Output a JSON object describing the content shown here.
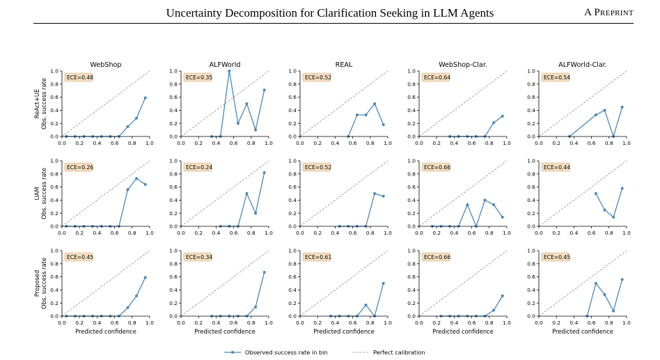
{
  "header": {
    "title": "Uncertainty Decomposition for Clarification Seeking in LLM Agents",
    "tag": "A Preprint"
  },
  "legend": {
    "observed": "Observed success rate in bin",
    "perfect": "Perfect calibration"
  },
  "colors": {
    "series": "#4a86b8",
    "ece_box_fill": "#f5dfc0",
    "ece_box_stroke": "#c9a77c",
    "diagonal": "#8c8c8c"
  },
  "chart_data": {
    "type": "line",
    "columns": [
      "WebShop",
      "ALFWorld",
      "REAL",
      "WebShop-Clar.",
      "ALFWorld-Clar."
    ],
    "rows": [
      "ReAct+UE",
      "UAM",
      "Proposed"
    ],
    "ylabel_suffix": "Obs. success rate",
    "xlabel": "Predicted confidence",
    "xlim": [
      0,
      1
    ],
    "ylim": [
      0,
      1
    ],
    "xticks": [
      "0.0",
      "0.2",
      "0.4",
      "0.6",
      "0.8",
      "1.0"
    ],
    "yticks": [
      "0.0",
      "0.2",
      "0.4",
      "0.6",
      "0.8",
      "1.0"
    ],
    "grid": false,
    "legend_position": "bottom-center",
    "panels": [
      [
        {
          "ece": "ECE=0.48",
          "x": [
            0.05,
            0.15,
            0.25,
            0.35,
            0.45,
            0.55,
            0.65,
            0.75,
            0.85,
            0.95
          ],
          "y": [
            0,
            0,
            0,
            0,
            0,
            0,
            0,
            0.15,
            0.28,
            0.59
          ]
        },
        {
          "ece": "ECE=0.35",
          "x": [
            0.35,
            0.45,
            0.55,
            0.65,
            0.75,
            0.85,
            0.95
          ],
          "y": [
            0,
            0,
            1.0,
            0.2,
            0.5,
            0.1,
            0.71
          ]
        },
        {
          "ece": "ECE=0.52",
          "x": [
            0.55,
            0.65,
            0.75,
            0.85,
            0.95
          ],
          "y": [
            0,
            0.33,
            0.33,
            0.5,
            0.18
          ]
        },
        {
          "ece": "ECE=0.64",
          "x": [
            0.35,
            0.45,
            0.55,
            0.65,
            0.75,
            0.85,
            0.95
          ],
          "y": [
            0,
            0,
            0,
            0,
            0,
            0.21,
            0.31
          ]
        },
        {
          "ece": "ECE=0.54",
          "x": [
            0.35,
            0.65,
            0.75,
            0.85,
            0.95
          ],
          "y": [
            0,
            0.33,
            0.4,
            0,
            0.45
          ]
        }
      ],
      [
        {
          "ece": "ECE=0.26",
          "x": [
            0.05,
            0.15,
            0.25,
            0.35,
            0.45,
            0.55,
            0.65,
            0.75,
            0.85,
            0.95
          ],
          "y": [
            0,
            0,
            0,
            0,
            0,
            0,
            0,
            0.56,
            0.73,
            0.64
          ]
        },
        {
          "ece": "ECE=0.24",
          "x": [
            0.45,
            0.55,
            0.65,
            0.75,
            0.85,
            0.95
          ],
          "y": [
            0,
            0,
            0,
            0.5,
            0.2,
            0.82
          ]
        },
        {
          "ece": "ECE=0.52",
          "x": [
            0.45,
            0.55,
            0.65,
            0.75,
            0.85,
            0.95
          ],
          "y": [
            0,
            0,
            0,
            0,
            0.5,
            0.46
          ]
        },
        {
          "ece": "ECE=0.66",
          "x": [
            0.15,
            0.25,
            0.35,
            0.45,
            0.55,
            0.65,
            0.75,
            0.85,
            0.95
          ],
          "y": [
            0,
            0,
            0,
            0,
            0.33,
            0,
            0.4,
            0.33,
            0.14
          ]
        },
        {
          "ece": "ECE=0.44",
          "x": [
            0.65,
            0.75,
            0.85,
            0.95
          ],
          "y": [
            0.5,
            0.25,
            0.14,
            0.58
          ]
        }
      ],
      [
        {
          "ece": "ECE=0.45",
          "x": [
            0.05,
            0.15,
            0.25,
            0.35,
            0.45,
            0.55,
            0.65,
            0.75,
            0.85,
            0.95
          ],
          "y": [
            0,
            0,
            0,
            0,
            0,
            0,
            0,
            0.13,
            0.31,
            0.59
          ]
        },
        {
          "ece": "ECE=0.34",
          "x": [
            0.35,
            0.45,
            0.55,
            0.65,
            0.75,
            0.85,
            0.95
          ],
          "y": [
            0,
            0,
            0,
            0,
            0,
            0.14,
            0.67
          ]
        },
        {
          "ece": "ECE=0.61",
          "x": [
            0.35,
            0.45,
            0.55,
            0.65,
            0.75,
            0.85,
            0.95
          ],
          "y": [
            0,
            0,
            0,
            0,
            0.17,
            0,
            0.5
          ]
        },
        {
          "ece": "ECE=0.66",
          "x": [
            0.25,
            0.35,
            0.45,
            0.55,
            0.65,
            0.75,
            0.85,
            0.95
          ],
          "y": [
            0,
            0,
            0,
            0,
            0,
            0,
            0.09,
            0.31
          ]
        },
        {
          "ece": "ECE=0.45",
          "x": [
            0.55,
            0.65,
            0.75,
            0.85,
            0.95
          ],
          "y": [
            0,
            0.5,
            0.33,
            0.08,
            0.56
          ]
        }
      ]
    ]
  }
}
